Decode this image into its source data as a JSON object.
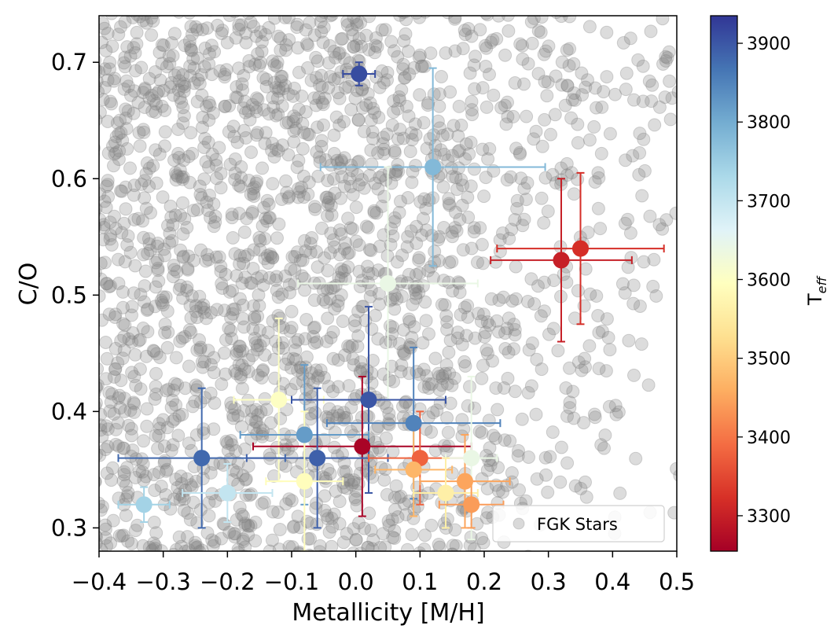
{
  "chart_data": {
    "type": "scatter",
    "xlabel": "Metallicity [M/H]",
    "ylabel": "C/O",
    "xlim": [
      -0.4,
      0.5
    ],
    "ylim": [
      0.28,
      0.74
    ],
    "xticks": [
      "−0.4",
      "−0.3",
      "−0.2",
      "−0.1",
      "0.0",
      "0.1",
      "0.2",
      "0.3",
      "0.4",
      "0.5"
    ],
    "xtick_values": [
      -0.4,
      -0.3,
      -0.2,
      -0.1,
      0.0,
      0.1,
      0.2,
      0.3,
      0.4,
      0.5
    ],
    "yticks": [
      "0.3",
      "0.4",
      "0.5",
      "0.6",
      "0.7"
    ],
    "ytick_values": [
      0.3,
      0.4,
      0.5,
      0.6,
      0.7
    ],
    "grid": false,
    "legend": {
      "placement": "lower-right",
      "entries": [
        "FGK Stars"
      ]
    },
    "colorbar": {
      "label": "T_eff",
      "label_main": "T",
      "label_sub": "eff",
      "range": [
        3255,
        3935
      ],
      "colormap": "RdYlBu",
      "ticks": [
        3300,
        3400,
        3500,
        3600,
        3700,
        3800,
        3900
      ],
      "tick_labels": [
        "3300",
        "3400",
        "3500",
        "3600",
        "3700",
        "3800",
        "3900"
      ]
    },
    "background_series": {
      "name": "FGK Stars",
      "color": "#808080",
      "point_count": 2600,
      "description": "dense cloud of grey points, concentrated toward low metallicity and higher C/O"
    },
    "points": [
      {
        "x": 0.005,
        "y": 0.69,
        "xerr": 0.025,
        "yerr": 0.01,
        "teff": 3910
      },
      {
        "x": 0.12,
        "y": 0.61,
        "xerr": 0.175,
        "yerr": 0.085,
        "teff": 3780
      },
      {
        "x": 0.32,
        "y": 0.53,
        "xerr": 0.11,
        "yerr": 0.07,
        "teff": 3300
      },
      {
        "x": 0.35,
        "y": 0.54,
        "xerr": 0.13,
        "yerr": 0.065,
        "teff": 3320
      },
      {
        "x": 0.05,
        "y": 0.51,
        "xerr": 0.14,
        "yerr": 0.1,
        "teff": 3640
      },
      {
        "x": -0.12,
        "y": 0.41,
        "xerr": 0.07,
        "yerr": 0.07,
        "teff": 3600
      },
      {
        "x": 0.02,
        "y": 0.41,
        "xerr": 0.12,
        "yerr": 0.08,
        "teff": 3900
      },
      {
        "x": -0.08,
        "y": 0.38,
        "xerr": 0.1,
        "yerr": 0.06,
        "teff": 3820
      },
      {
        "x": 0.09,
        "y": 0.39,
        "xerr": 0.135,
        "yerr": 0.065,
        "teff": 3850
      },
      {
        "x": 0.01,
        "y": 0.37,
        "xerr": 0.17,
        "yerr": 0.06,
        "teff": 3260
      },
      {
        "x": -0.24,
        "y": 0.36,
        "xerr": 0.13,
        "yerr": 0.06,
        "teff": 3880
      },
      {
        "x": -0.06,
        "y": 0.36,
        "xerr": 0.11,
        "yerr": 0.06,
        "teff": 3890
      },
      {
        "x": 0.1,
        "y": 0.36,
        "xerr": 0.08,
        "yerr": 0.04,
        "teff": 3380
      },
      {
        "x": 0.18,
        "y": 0.36,
        "xerr": 0.04,
        "yerr": 0.07,
        "teff": 3640
      },
      {
        "x": 0.09,
        "y": 0.35,
        "xerr": 0.06,
        "yerr": 0.04,
        "teff": 3470
      },
      {
        "x": 0.17,
        "y": 0.34,
        "xerr": 0.07,
        "yerr": 0.04,
        "teff": 3450
      },
      {
        "x": -0.08,
        "y": 0.34,
        "xerr": 0.06,
        "yerr": 0.06,
        "teff": 3590
      },
      {
        "x": 0.14,
        "y": 0.33,
        "xerr": 0.05,
        "yerr": 0.03,
        "teff": 3560
      },
      {
        "x": -0.2,
        "y": 0.33,
        "xerr": 0.07,
        "yerr": 0.025,
        "teff": 3700
      },
      {
        "x": -0.33,
        "y": 0.32,
        "xerr": 0.04,
        "yerr": 0.015,
        "teff": 3740
      },
      {
        "x": 0.18,
        "y": 0.32,
        "xerr": 0.05,
        "yerr": 0.02,
        "teff": 3440
      }
    ]
  }
}
